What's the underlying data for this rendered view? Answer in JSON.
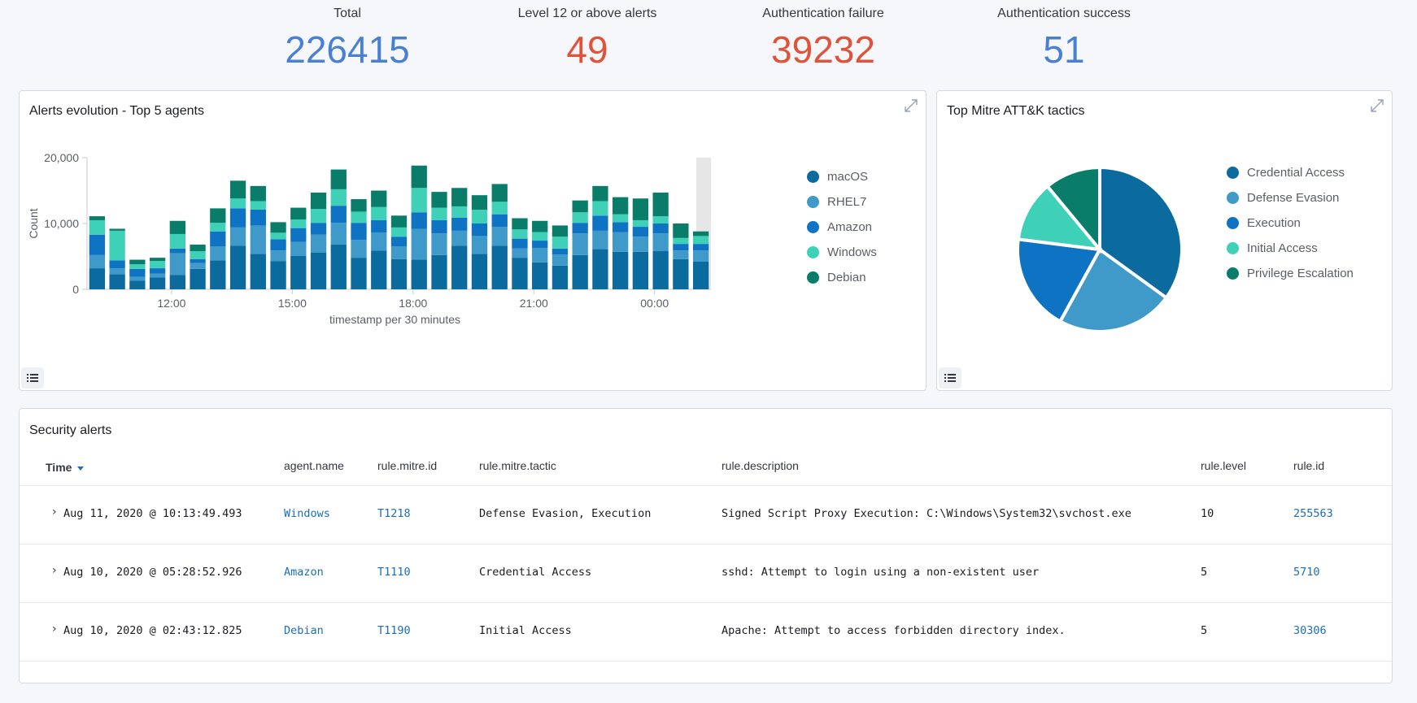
{
  "metrics": [
    {
      "label": "Total",
      "value": "226415",
      "color": "#4a7fd6"
    },
    {
      "label": "Level 12 or above alerts",
      "value": "49",
      "color": "#e1523a"
    },
    {
      "label": "Authentication failure",
      "value": "39232",
      "color": "#e1523a"
    },
    {
      "label": "Authentication success",
      "value": "51",
      "color": "#4a7fd6"
    }
  ],
  "alerts_panel": {
    "title": "Alerts evolution - Top 5 agents",
    "expand_icon": "expand-icon",
    "legend_toggle_icon": "list-icon"
  },
  "tactics_panel": {
    "title": "Top Mitre ATT&K tactics",
    "expand_icon": "expand-icon",
    "legend_toggle_icon": "list-icon"
  },
  "chart_data": [
    {
      "type": "bar",
      "stacked": true,
      "title": "Alerts evolution - Top 5 agents",
      "xlabel": "timestamp per 30 minutes",
      "ylabel": "Count",
      "ylim": [
        0,
        20000
      ],
      "yticks": [
        "0",
        "10,000",
        "20,000"
      ],
      "xticks": [
        {
          "label": "12:00",
          "at": 4.2
        },
        {
          "label": "15:00",
          "at": 10.2
        },
        {
          "label": "18:00",
          "at": 16.2
        },
        {
          "label": "21:00",
          "at": 22.2
        },
        {
          "label": "00:00",
          "at": 28.2
        }
      ],
      "legend_position": "right",
      "series": [
        {
          "name": "macOS",
          "color": "#0b6a9e",
          "values": [
            3200,
            2300,
            1300,
            1800,
            2200,
            3100,
            4400,
            6600,
            5400,
            4300,
            5100,
            5600,
            6800,
            4800,
            5900,
            4600,
            4500,
            5200,
            6600,
            5400,
            6600,
            4800,
            4100,
            3600,
            5200,
            6100,
            5700,
            5700,
            5800,
            4600,
            4200
          ]
        },
        {
          "name": "RHEL7",
          "color": "#3f9ac9",
          "values": [
            2000,
            900,
            600,
            600,
            3300,
            900,
            2100,
            2800,
            4300,
            1600,
            2100,
            2700,
            3300,
            2700,
            2700,
            1900,
            4700,
            3300,
            2300,
            2700,
            2900,
            1400,
            2200,
            1700,
            3300,
            2800,
            3000,
            2300,
            2700,
            1300,
            1700
          ]
        },
        {
          "name": "Amazon",
          "color": "#0f73c4",
          "values": [
            3100,
            1200,
            1200,
            800,
            700,
            600,
            2300,
            2900,
            2400,
            1700,
            2100,
            1800,
            2600,
            2600,
            1900,
            1500,
            2500,
            2000,
            2000,
            1900,
            1900,
            1500,
            1100,
            900,
            1600,
            2300,
            1500,
            1500,
            1500,
            1000,
            1000
          ]
        },
        {
          "name": "Windows",
          "color": "#3fd0b8",
          "values": [
            2200,
            4500,
            700,
            1100,
            2200,
            1200,
            1300,
            1500,
            1300,
            1000,
            1300,
            2100,
            2500,
            1700,
            2000,
            1400,
            3700,
            1900,
            1700,
            2100,
            1900,
            1400,
            1300,
            1800,
            1600,
            2200,
            1200,
            1000,
            1100,
            900,
            1200
          ]
        },
        {
          "name": "Debian",
          "color": "#0a7d6a",
          "values": [
            600,
            300,
            700,
            500,
            2000,
            1000,
            2200,
            2700,
            2300,
            1600,
            1800,
            2500,
            3000,
            1900,
            2500,
            1800,
            3400,
            2400,
            2800,
            2200,
            2700,
            1700,
            1700,
            1700,
            1800,
            2300,
            2600,
            3300,
            3600,
            2200,
            700
          ]
        }
      ]
    },
    {
      "type": "pie",
      "title": "Top Mitre ATT&K tactics",
      "legend_position": "right",
      "slices": [
        {
          "name": "Credential Access",
          "value": 35,
          "color": "#0b6a9e"
        },
        {
          "name": "Defense Evasion",
          "value": 23,
          "color": "#3f9ac9"
        },
        {
          "name": "Execution",
          "value": 19,
          "color": "#0f73c4"
        },
        {
          "name": "Initial Access",
          "value": 12,
          "color": "#3fd0b8"
        },
        {
          "name": "Privilege Escalation",
          "value": 11,
          "color": "#0a7d6a"
        }
      ]
    }
  ],
  "security_alerts": {
    "title": "Security alerts",
    "sort_icon": "sort-down-icon",
    "columns": [
      "Time",
      "agent.name",
      "rule.mitre.id",
      "rule.mitre.tactic",
      "rule.description",
      "rule.level",
      "rule.id"
    ],
    "rows": [
      {
        "time": "Aug 11, 2020 @ 10:13:49.493",
        "agent": "Windows",
        "mitre_id": "T1218",
        "tactic": "Defense Evasion, Execution",
        "description": "Signed Script Proxy Execution: C:\\Windows\\System32\\svchost.exe",
        "level": "10",
        "rule_id": "255563"
      },
      {
        "time": "Aug 10, 2020 @ 05:28:52.926",
        "agent": "Amazon",
        "mitre_id": "T1110",
        "tactic": "Credential Access",
        "description": "sshd: Attempt to login using a non-existent user",
        "level": "5",
        "rule_id": "5710"
      },
      {
        "time": "Aug 10, 2020 @ 02:43:12.825",
        "agent": "Debian",
        "mitre_id": "T1190",
        "tactic": "Initial Access",
        "description": "Apache: Attempt to access forbidden directory index.",
        "level": "5",
        "rule_id": "30306"
      }
    ]
  }
}
